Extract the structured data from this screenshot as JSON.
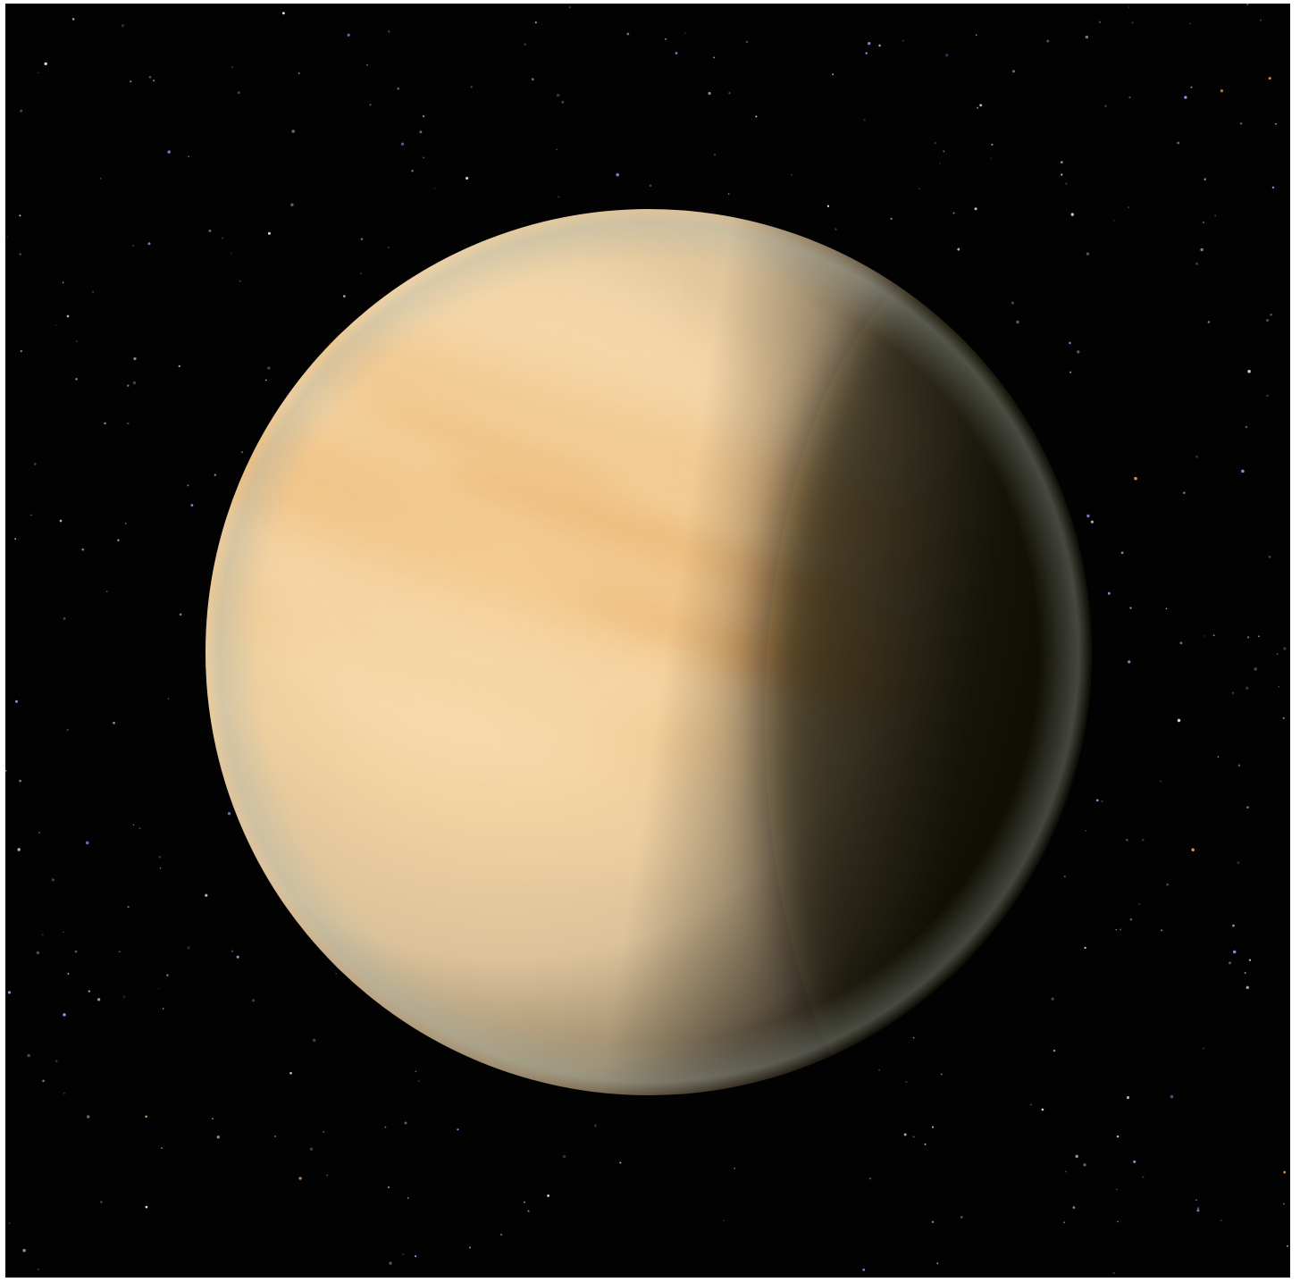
{
  "scene": {
    "subject": "planet-icon",
    "colors": {
      "space": "#020203",
      "frame": "#ffffff",
      "planet_light": "#fbe3b4",
      "planet_mid": "#e9c58f",
      "planet_band": "#eaab5f",
      "planet_shadow": "#141008",
      "limb_tint": "#a9b7ae",
      "star_white": "#e8ecff",
      "star_blue": "#8ea6ff",
      "star_orange": "#d8a06a"
    }
  }
}
